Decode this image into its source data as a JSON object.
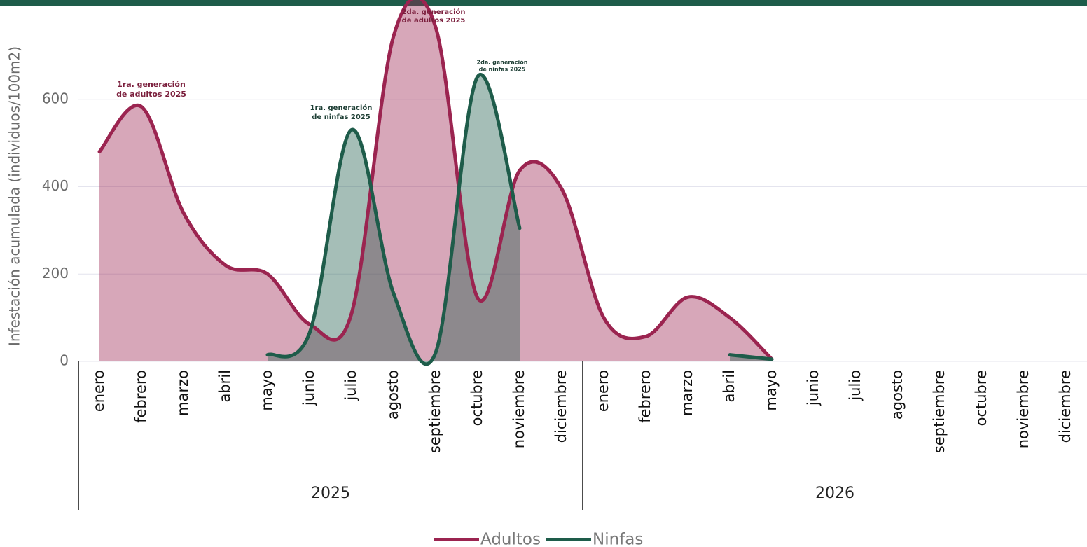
{
  "chart_data": {
    "type": "line",
    "y_label": "Infestación acumulada (individuos/100m2)",
    "categories": [
      "enero",
      "febrero",
      "marzo",
      "abril",
      "mayo",
      "junio",
      "julio",
      "agosto",
      "septiembre",
      "octubre",
      "noviembre",
      "diciembre",
      "enero",
      "febrero",
      "marzo",
      "abril",
      "mayo",
      "junio",
      "julio",
      "agosto",
      "septiembre",
      "octubre",
      "noviembre",
      "diciembre"
    ],
    "x_groups": [
      "2025",
      "2026"
    ],
    "series": [
      {
        "name": "Adultos",
        "color": "#9b2450",
        "values": [
          480,
          583,
          340,
          220,
          200,
          85,
          110,
          745,
          765,
          145,
          437,
          395,
          100,
          57,
          147,
          100,
          5,
          null,
          null,
          null,
          null,
          null,
          null,
          null
        ]
      },
      {
        "name": "Ninfas",
        "color": "#1e5c4a",
        "values": [
          null,
          null,
          null,
          null,
          15,
          65,
          530,
          155,
          20,
          652,
          305,
          null,
          null,
          null,
          null,
          15,
          5,
          null,
          null,
          null,
          null,
          null,
          null,
          null
        ]
      }
    ],
    "ylim": [
      0,
      800
    ],
    "yticks": [
      0,
      200,
      400,
      600
    ],
    "grid": true,
    "annotations": [
      [
        "1ra. generación",
        "de adultos 2025"
      ],
      [
        "1ra. generación",
        "de ninfas 2025"
      ],
      [
        "2da. generación",
        "de adultos 2025"
      ],
      [
        "2da. generación",
        "de ninfas 2025"
      ]
    ]
  }
}
